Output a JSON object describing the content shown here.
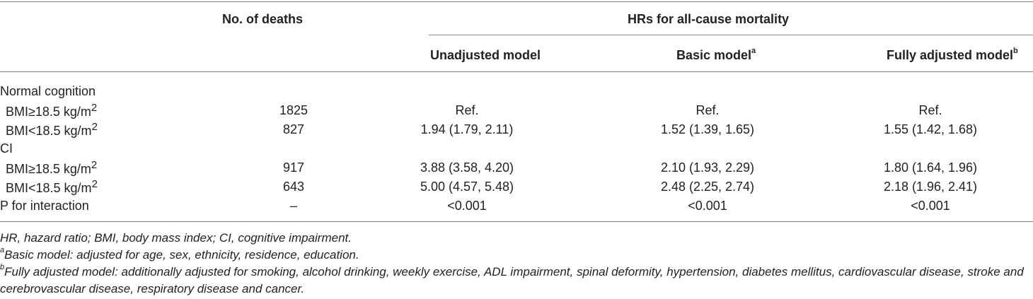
{
  "header": {
    "col_deaths": "No. of deaths",
    "group_hr": "HRs for all-cause mortality",
    "model_unadjusted": "Unadjusted model",
    "model_basic": "Basic model",
    "model_basic_sup": "a",
    "model_full": "Fully adjusted model",
    "model_full_sup": "b"
  },
  "rows": [
    {
      "label": "Normal cognition",
      "deaths": "",
      "m1": "",
      "m2": "",
      "m3": ""
    },
    {
      "label": "BMI≥18.5 kg/m",
      "label_sup": "2",
      "deaths": "1825",
      "m1": "Ref.",
      "m2": "Ref.",
      "m3": "Ref."
    },
    {
      "label": "BMI<18.5 kg/m",
      "label_sup": "2",
      "deaths": "827",
      "m1": "1.94 (1.79, 2.11)",
      "m2": "1.52 (1.39, 1.65)",
      "m3": "1.55 (1.42, 1.68)"
    },
    {
      "label": "CI",
      "deaths": "",
      "m1": "",
      "m2": "",
      "m3": ""
    },
    {
      "label": "BMI≥18.5 kg/m",
      "label_sup": "2",
      "deaths": "917",
      "m1": "3.88 (3.58, 4.20)",
      "m2": "2.10 (1.93, 2.29)",
      "m3": "1.80 (1.64, 1.96)"
    },
    {
      "label": "BMI<18.5 kg/m",
      "label_sup": "2",
      "deaths": "643",
      "m1": "5.00 (4.57, 5.48)",
      "m2": "2.48 (2.25, 2.74)",
      "m3": "2.18 (1.96, 2.41)"
    },
    {
      "label": "P for interaction",
      "deaths": "–",
      "m1": "<0.001",
      "m2": "<0.001",
      "m3": "<0.001"
    }
  ],
  "notes": {
    "abbrev": "HR, hazard ratio; BMI, body mass index; CI, cognitive impairment.",
    "a_sup": "a",
    "a_text": "Basic model: adjusted for age, sex, ethnicity, residence, education.",
    "b_sup": "b",
    "b_text": "Fully adjusted model: additionally adjusted for smoking, alcohol drinking, weekly exercise, ADL impairment, spinal deformity, hypertension, diabetes mellitus, cardiovascular disease, stroke and cerebrovascular disease, respiratory disease and cancer."
  }
}
